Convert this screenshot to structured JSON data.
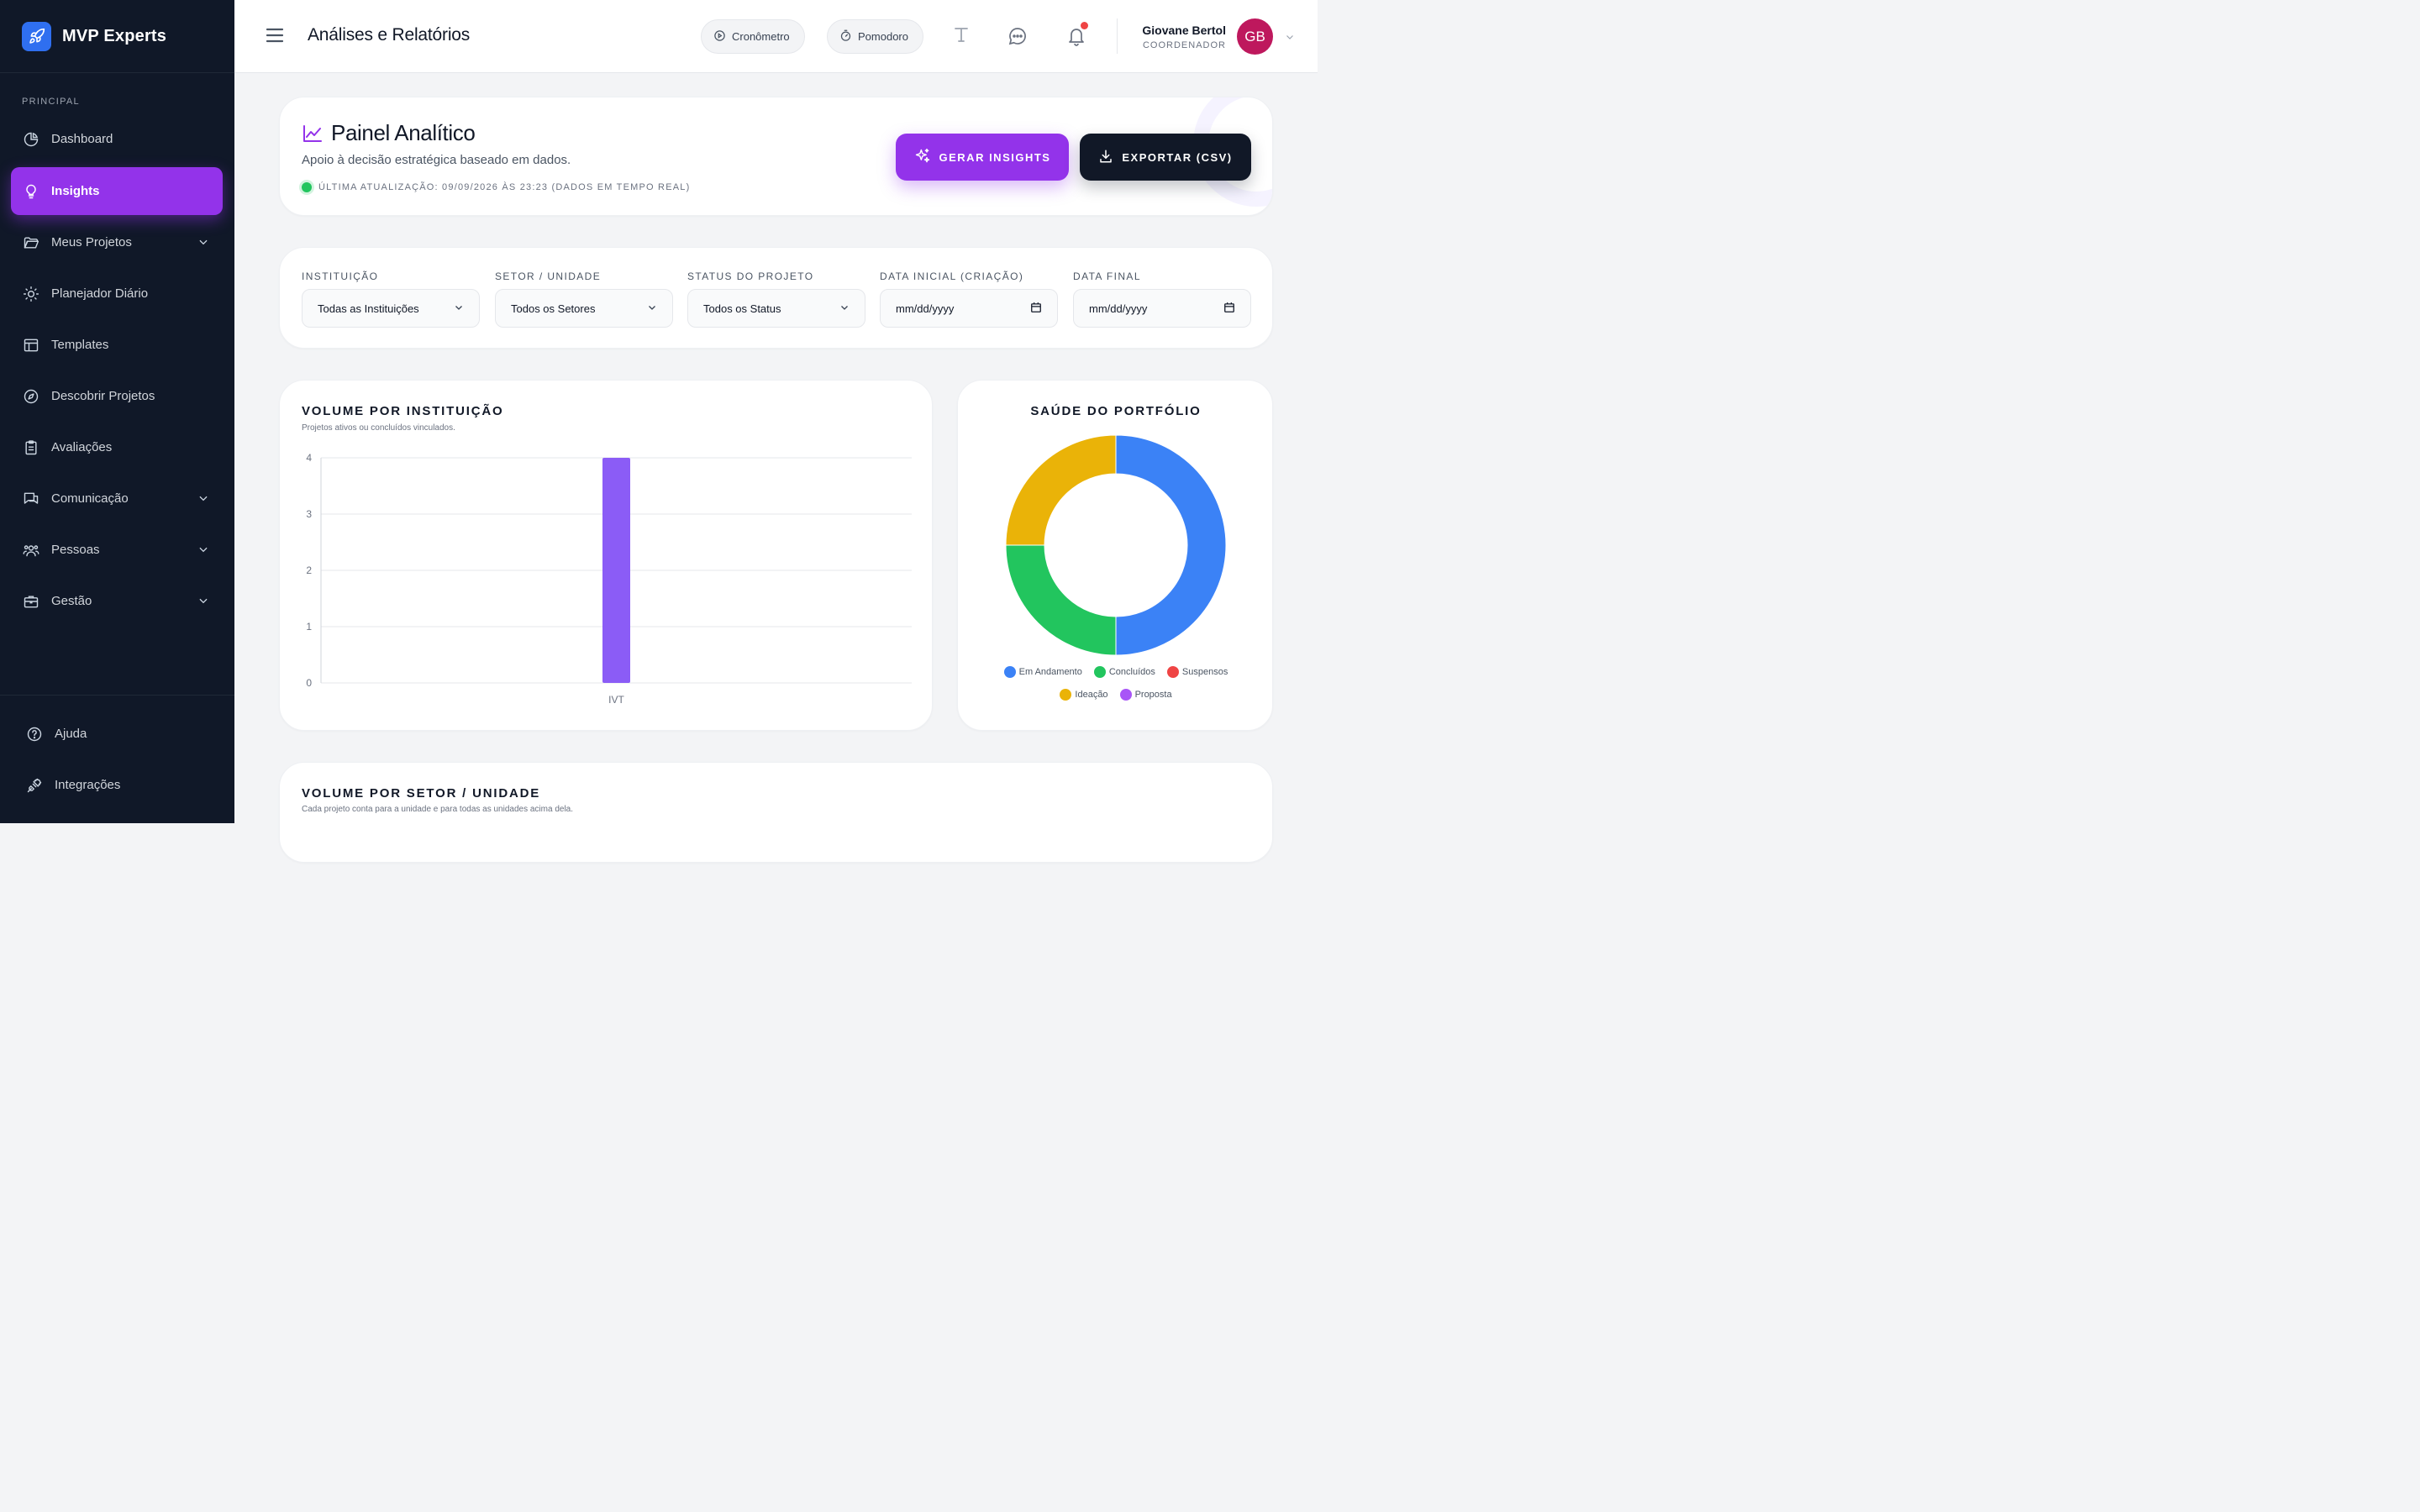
{
  "brand": {
    "name": "MVP Experts"
  },
  "sidebar": {
    "section_label": "PRINCIPAL",
    "items": [
      {
        "label": "Dashboard",
        "icon": "chart-pie-icon"
      },
      {
        "label": "Insights",
        "icon": "lightbulb-icon",
        "active": true
      },
      {
        "label": "Meus Projetos",
        "icon": "folder-icon",
        "expandable": true
      },
      {
        "label": "Planejador Diário",
        "icon": "sun-icon"
      },
      {
        "label": "Templates",
        "icon": "template-icon"
      },
      {
        "label": "Descobrir Projetos",
        "icon": "compass-icon"
      },
      {
        "label": "Avaliações",
        "icon": "clipboard-icon"
      },
      {
        "label": "Comunicação",
        "icon": "chat-icon",
        "expandable": true
      },
      {
        "label": "Pessoas",
        "icon": "users-icon",
        "expandable": true
      },
      {
        "label": "Gestão",
        "icon": "briefcase-icon",
        "expandable": true
      }
    ],
    "footer": [
      {
        "label": "Ajuda",
        "icon": "help-icon"
      },
      {
        "label": "Integrações",
        "icon": "plug-icon"
      }
    ]
  },
  "header": {
    "title": "Análises e Relatórios",
    "stopwatch_label": "Cronômetro",
    "pomodoro_label": "Pomodoro",
    "user": {
      "name": "Giovane Bertol",
      "role": "COORDENADOR",
      "initials": "GB"
    }
  },
  "panel": {
    "title": "Painel Analítico",
    "subtitle": "Apoio à decisão estratégica baseado em dados.",
    "last_update": "ÚLTIMA ATUALIZAÇÃO: 09/09/2026 ÀS 23:23 (DADOS EM TEMPO REAL)",
    "insights_button": "GERAR INSIGHTS",
    "export_button": "EXPORTAR (CSV)"
  },
  "filters": [
    {
      "label": "INSTITUIÇÃO",
      "value": "Todas as Instituições",
      "type": "select"
    },
    {
      "label": "SETOR / UNIDADE",
      "value": "Todos os Setores",
      "type": "select"
    },
    {
      "label": "STATUS DO PROJETO",
      "value": "Todos os Status",
      "type": "select"
    },
    {
      "label": "DATA INICIAL (CRIAÇÃO)",
      "value": "mm/dd/yyyy",
      "type": "date"
    },
    {
      "label": "DATA FINAL",
      "value": "mm/dd/yyyy",
      "type": "date"
    }
  ],
  "chart_data": [
    {
      "type": "bar",
      "title": "VOLUME POR INSTITUIÇÃO",
      "subtitle": "Projetos ativos ou concluídos vinculados.",
      "categories": [
        "IVT"
      ],
      "values": [
        4
      ],
      "ylim": [
        0,
        4
      ],
      "yticks": [
        0,
        1,
        2,
        3,
        4
      ],
      "color": "#8b5cf6",
      "grid": true
    },
    {
      "type": "pie",
      "title": "SAÚDE DO PORTFÓLIO",
      "donut": true,
      "legend_position": "bottom",
      "slices": [
        {
          "label": "Em Andamento",
          "value": 2,
          "color": "#3b82f6"
        },
        {
          "label": "Concluídos",
          "value": 1,
          "color": "#22c55e"
        },
        {
          "label": "Suspensos",
          "value": 0,
          "color": "#ef4444"
        },
        {
          "label": "Ideação",
          "value": 1,
          "color": "#eab308"
        },
        {
          "label": "Proposta",
          "value": 0,
          "color": "#a855f7"
        }
      ]
    }
  ],
  "sector_card": {
    "title": "VOLUME POR SETOR / UNIDADE",
    "subtitle": "Cada projeto conta para a unidade e para todas as unidades acima dela."
  }
}
